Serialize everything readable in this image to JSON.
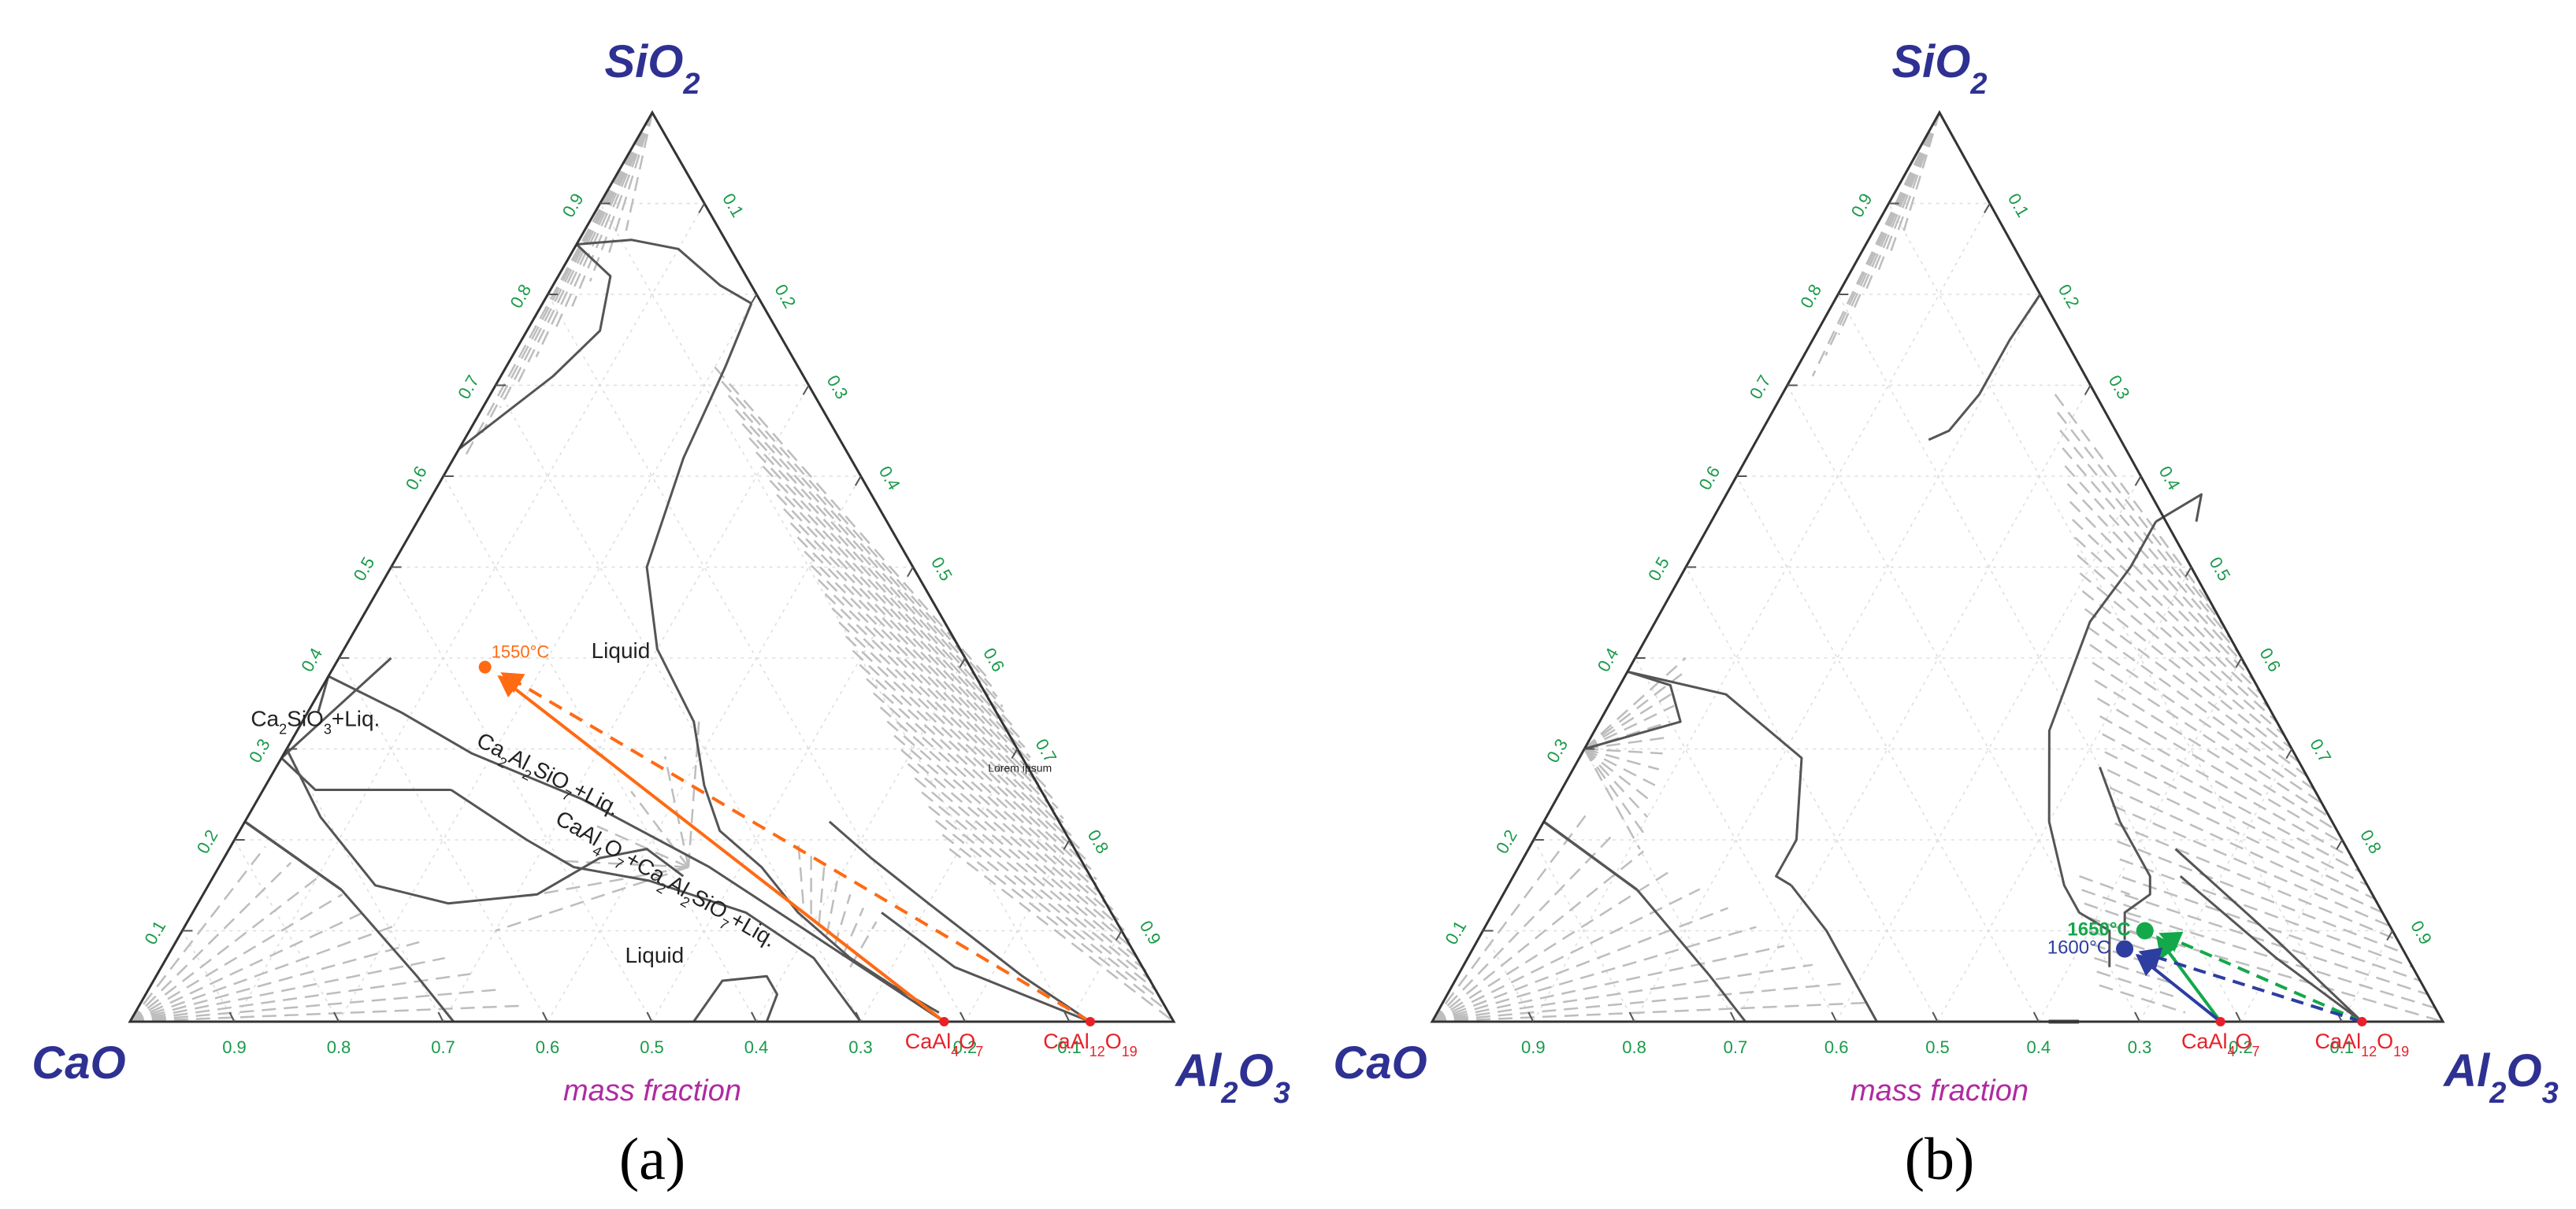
{
  "figure": {
    "colors": {
      "vertex_label": "#2e3192",
      "tick_label": "#1a9a4a",
      "mass_fraction_label": "#b02aa0",
      "compound_label": "#e8202a",
      "orange_path": "#ff6a13",
      "green_path": "#13a84a",
      "blue_path": "#2d3da0",
      "phase_boundary": "#555555",
      "tie_line": "#bdbdbd",
      "grid": "#dddddd"
    },
    "panels": [
      {
        "id": "a",
        "panel_label": "(a)",
        "vertex_labels": {
          "top": "SiO2",
          "left": "CaO",
          "right": "Al2O3"
        },
        "mass_fraction_label": "mass fraction",
        "tick_values": [
          "0.1",
          "0.2",
          "0.3",
          "0.4",
          "0.5",
          "0.6",
          "0.7",
          "0.8",
          "0.9"
        ],
        "compound_points": [
          {
            "name": "CaAl4O7",
            "sio2": 0,
            "al2o3": 0.78
          },
          {
            "name": "CaAl12O19",
            "sio2": 0,
            "al2o3": 0.92
          }
        ],
        "region_labels": [
          {
            "text": "Liquid",
            "sio2": 0.4,
            "al2o3": 0.27
          },
          {
            "text": "Ca2SiO3+Liq.",
            "sio2": 0.325,
            "al2o3": 0.015
          },
          {
            "text": "Ca2Al2SiO7+Liq.",
            "sio2": 0.265,
            "al2o3": 0.265,
            "rotate": 27
          },
          {
            "text": "CaAl4O7+Ca2Al2SiO7+Liq.",
            "sio2": 0.15,
            "al2o3": 0.435,
            "rotate": 30
          },
          {
            "text": "Liquid",
            "sio2": 0.065,
            "al2o3": 0.47
          },
          {
            "text": "Lorem ipsum",
            "sio2": 0.275,
            "al2o3": 0.715
          }
        ],
        "temperature_points": [
          {
            "label": "1550°C",
            "sio2": 0.39,
            "al2o3": 0.145,
            "color": "orange"
          }
        ]
      },
      {
        "id": "b",
        "panel_label": "(b)",
        "vertex_labels": {
          "top": "SiO2",
          "left": "CaO",
          "right": "Al2O3"
        },
        "mass_fraction_label": "mass fraction",
        "tick_values": [
          "0.1",
          "0.2",
          "0.3",
          "0.4",
          "0.5",
          "0.6",
          "0.7",
          "0.8",
          "0.9"
        ],
        "compound_points": [
          {
            "name": "CaAl4O7",
            "sio2": 0,
            "al2o3": 0.78
          },
          {
            "name": "CaAl12O19",
            "sio2": 0,
            "al2o3": 0.92
          }
        ],
        "region_labels": [],
        "temperature_points": [
          {
            "label": "1650°C",
            "sio2": 0.1,
            "al2o3": 0.655,
            "color": "green"
          },
          {
            "label": "1600°C",
            "sio2": 0.08,
            "al2o3": 0.645,
            "color": "blue"
          }
        ]
      }
    ]
  }
}
